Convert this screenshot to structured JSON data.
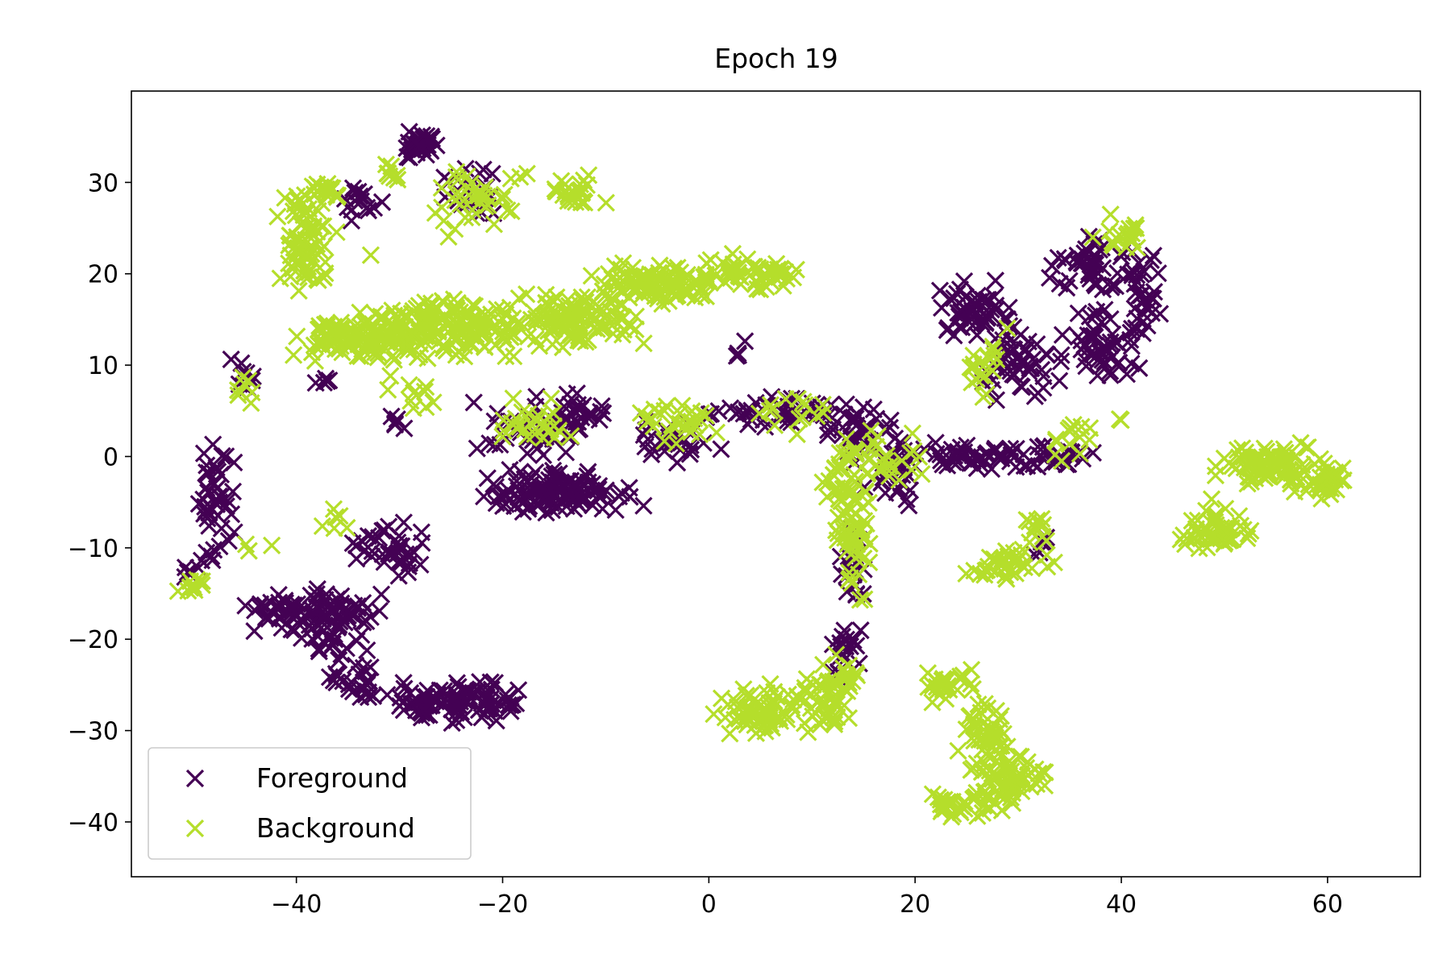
{
  "chart_data": {
    "type": "scatter",
    "title": "Epoch 19",
    "xlabel": "",
    "ylabel": "",
    "xlim": [
      -56,
      69
    ],
    "ylim": [
      -46,
      40
    ],
    "xticks": [
      -40,
      -20,
      0,
      20,
      40,
      60
    ],
    "yticks": [
      -40,
      -30,
      -20,
      -10,
      0,
      10,
      20,
      30
    ],
    "xtick_labels": [
      "−40",
      "−20",
      "0",
      "20",
      "40",
      "60"
    ],
    "ytick_labels": [
      "−40",
      "−30",
      "−20",
      "−10",
      "0",
      "10",
      "20",
      "30"
    ],
    "grid": false,
    "legend_position": "lower-left",
    "marker": "x",
    "series": [
      {
        "name": "Foreground",
        "color": "#440154",
        "clusters": [
          {
            "cx": -28,
            "cy": 34,
            "sx": 2,
            "sy": 1.2,
            "n": 40
          },
          {
            "cx": -23,
            "cy": 29,
            "sx": 2,
            "sy": 2,
            "n": 25
          },
          {
            "cx": -34,
            "cy": 28,
            "sx": 1.5,
            "sy": 2,
            "n": 15
          },
          {
            "cx": -45,
            "cy": 9,
            "sx": 1.2,
            "sy": 1.5,
            "n": 10
          },
          {
            "cx": -37,
            "cy": 8,
            "sx": 1,
            "sy": 0.5,
            "n": 5
          },
          {
            "cx": -30,
            "cy": 3,
            "sx": 1,
            "sy": 1,
            "n": 5
          },
          {
            "cx": -48,
            "cy": -4,
            "sx": 1.5,
            "sy": 4.5,
            "n": 45
          },
          {
            "cx": -50,
            "cy": -12,
            "sx": 1.5,
            "sy": 1,
            "n": 8
          },
          {
            "cx": -41,
            "cy": -17,
            "sx": 3,
            "sy": 2,
            "n": 45
          },
          {
            "cx": -36,
            "cy": -18,
            "sx": 3,
            "sy": 3.5,
            "n": 70
          },
          {
            "cx": -31,
            "cy": -10,
            "sx": 3,
            "sy": 2.5,
            "n": 40
          },
          {
            "cx": -34,
            "cy": -25,
            "sx": 2,
            "sy": 1.5,
            "n": 25
          },
          {
            "cx": -27,
            "cy": -27,
            "sx": 3,
            "sy": 1.5,
            "n": 55
          },
          {
            "cx": -22,
            "cy": -27,
            "sx": 3,
            "sy": 1.8,
            "n": 45
          },
          {
            "cx": -15,
            "cy": -4,
            "sx": 6,
            "sy": 2,
            "n": 120
          },
          {
            "cx": -17,
            "cy": 3,
            "sx": 4,
            "sy": 3,
            "n": 45
          },
          {
            "cx": -12,
            "cy": 4,
            "sx": 3,
            "sy": 2,
            "n": 20
          },
          {
            "cx": -3,
            "cy": 2,
            "sx": 3,
            "sy": 2,
            "n": 30
          },
          {
            "cx": 6,
            "cy": 5,
            "sx": 5,
            "sy": 1.2,
            "n": 50
          },
          {
            "cx": 15,
            "cy": 3,
            "sx": 3,
            "sy": 2.5,
            "n": 40
          },
          {
            "cx": 18,
            "cy": -2,
            "sx": 2,
            "sy": 3,
            "n": 30
          },
          {
            "cx": 14,
            "cy": -12,
            "sx": 1,
            "sy": 4,
            "n": 25
          },
          {
            "cx": 13,
            "cy": -21,
            "sx": 1.2,
            "sy": 3,
            "n": 20
          },
          {
            "cx": 26,
            "cy": 0,
            "sx": 5,
            "sy": 1.2,
            "n": 50
          },
          {
            "cx": 34,
            "cy": 0,
            "sx": 3,
            "sy": 1.2,
            "n": 25
          },
          {
            "cx": 26,
            "cy": 16,
            "sx": 3,
            "sy": 2.5,
            "n": 55
          },
          {
            "cx": 30,
            "cy": 10,
            "sx": 3,
            "sy": 3,
            "n": 50
          },
          {
            "cx": 38,
            "cy": 12,
            "sx": 3,
            "sy": 3,
            "n": 50
          },
          {
            "cx": 37,
            "cy": 21,
            "sx": 3,
            "sy": 2.5,
            "n": 45
          },
          {
            "cx": 42,
            "cy": 19,
            "sx": 1.2,
            "sy": 5,
            "n": 35
          },
          {
            "cx": 3,
            "cy": 12,
            "sx": 0.5,
            "sy": 1,
            "n": 4
          },
          {
            "cx": 32,
            "cy": -9,
            "sx": 1,
            "sy": 2,
            "n": 5
          }
        ]
      },
      {
        "name": "Background",
        "color": "#b5de2b",
        "clusters": [
          {
            "cx": -39,
            "cy": 24,
            "sx": 2,
            "sy": 5,
            "n": 80
          },
          {
            "cx": -37,
            "cy": 29,
            "sx": 1.5,
            "sy": 1,
            "n": 15
          },
          {
            "cx": -34,
            "cy": 13,
            "sx": 5,
            "sy": 2,
            "n": 120
          },
          {
            "cx": -24,
            "cy": 14,
            "sx": 6,
            "sy": 2.5,
            "n": 140
          },
          {
            "cx": -13,
            "cy": 15,
            "sx": 5,
            "sy": 2.5,
            "n": 110
          },
          {
            "cx": -5,
            "cy": 19,
            "sx": 5,
            "sy": 2,
            "n": 90
          },
          {
            "cx": 4,
            "cy": 20,
            "sx": 4,
            "sy": 1.5,
            "n": 60
          },
          {
            "cx": -22,
            "cy": 28,
            "sx": 4,
            "sy": 3,
            "n": 40
          },
          {
            "cx": -13,
            "cy": 29,
            "sx": 2,
            "sy": 1.2,
            "n": 25
          },
          {
            "cx": -31,
            "cy": 31,
            "sx": 1.5,
            "sy": 1,
            "n": 8
          },
          {
            "cx": -45,
            "cy": 7,
            "sx": 1,
            "sy": 2,
            "n": 8
          },
          {
            "cx": -29,
            "cy": 7,
            "sx": 2,
            "sy": 2,
            "n": 10
          },
          {
            "cx": -17,
            "cy": 4,
            "sx": 3,
            "sy": 2.5,
            "n": 30
          },
          {
            "cx": -3,
            "cy": 4,
            "sx": 3,
            "sy": 2,
            "n": 30
          },
          {
            "cx": 8,
            "cy": 5,
            "sx": 4,
            "sy": 2,
            "n": 15
          },
          {
            "cx": 16,
            "cy": 0,
            "sx": 4,
            "sy": 3,
            "n": 40
          },
          {
            "cx": 14,
            "cy": -9,
            "sx": 1.5,
            "sy": 5,
            "n": 50
          },
          {
            "cx": 13,
            "cy": -3,
            "sx": 2,
            "sy": 2,
            "n": 25
          },
          {
            "cx": 5,
            "cy": -28,
            "sx": 3,
            "sy": 2,
            "n": 70
          },
          {
            "cx": 11,
            "cy": -27,
            "sx": 2,
            "sy": 2.5,
            "n": 40
          },
          {
            "cx": 13,
            "cy": -24,
            "sx": 1.5,
            "sy": 2,
            "n": 20
          },
          {
            "cx": 23,
            "cy": -25,
            "sx": 2,
            "sy": 1.2,
            "n": 25
          },
          {
            "cx": 27,
            "cy": -30,
            "sx": 2,
            "sy": 3,
            "n": 40
          },
          {
            "cx": 29,
            "cy": -35,
            "sx": 3,
            "sy": 2,
            "n": 60
          },
          {
            "cx": 25,
            "cy": -38,
            "sx": 3,
            "sy": 1.2,
            "n": 40
          },
          {
            "cx": 29,
            "cy": -12,
            "sx": 3,
            "sy": 1.5,
            "n": 40
          },
          {
            "cx": 32,
            "cy": -8,
            "sx": 1.2,
            "sy": 1.5,
            "n": 12
          },
          {
            "cx": 55,
            "cy": -1,
            "sx": 4,
            "sy": 2,
            "n": 90
          },
          {
            "cx": 60,
            "cy": -3,
            "sx": 2,
            "sy": 1.5,
            "n": 30
          },
          {
            "cx": 50,
            "cy": -8,
            "sx": 2.5,
            "sy": 2,
            "n": 40
          },
          {
            "cx": 47,
            "cy": -9,
            "sx": 1.2,
            "sy": 1,
            "n": 10
          },
          {
            "cx": 27,
            "cy": 10,
            "sx": 2,
            "sy": 3,
            "n": 20
          },
          {
            "cx": 40,
            "cy": 24,
            "sx": 2,
            "sy": 1.5,
            "n": 20
          },
          {
            "cx": 35,
            "cy": 2,
            "sx": 2,
            "sy": 2,
            "n": 15
          },
          {
            "cx": -50,
            "cy": -14,
            "sx": 1.5,
            "sy": 0.6,
            "n": 12
          },
          {
            "cx": -36,
            "cy": -7,
            "sx": 1,
            "sy": 1.2,
            "n": 6
          },
          {
            "cx": -45,
            "cy": -10,
            "sx": 0.5,
            "sy": 0.5,
            "n": 2
          },
          {
            "cx": -42,
            "cy": -10,
            "sx": 0.3,
            "sy": 0.3,
            "n": 1
          },
          {
            "cx": -33,
            "cy": 22,
            "sx": 0.3,
            "sy": 0.3,
            "n": 1
          },
          {
            "cx": 40,
            "cy": 4,
            "sx": 0.3,
            "sy": 0.3,
            "n": 2
          }
        ]
      }
    ]
  }
}
